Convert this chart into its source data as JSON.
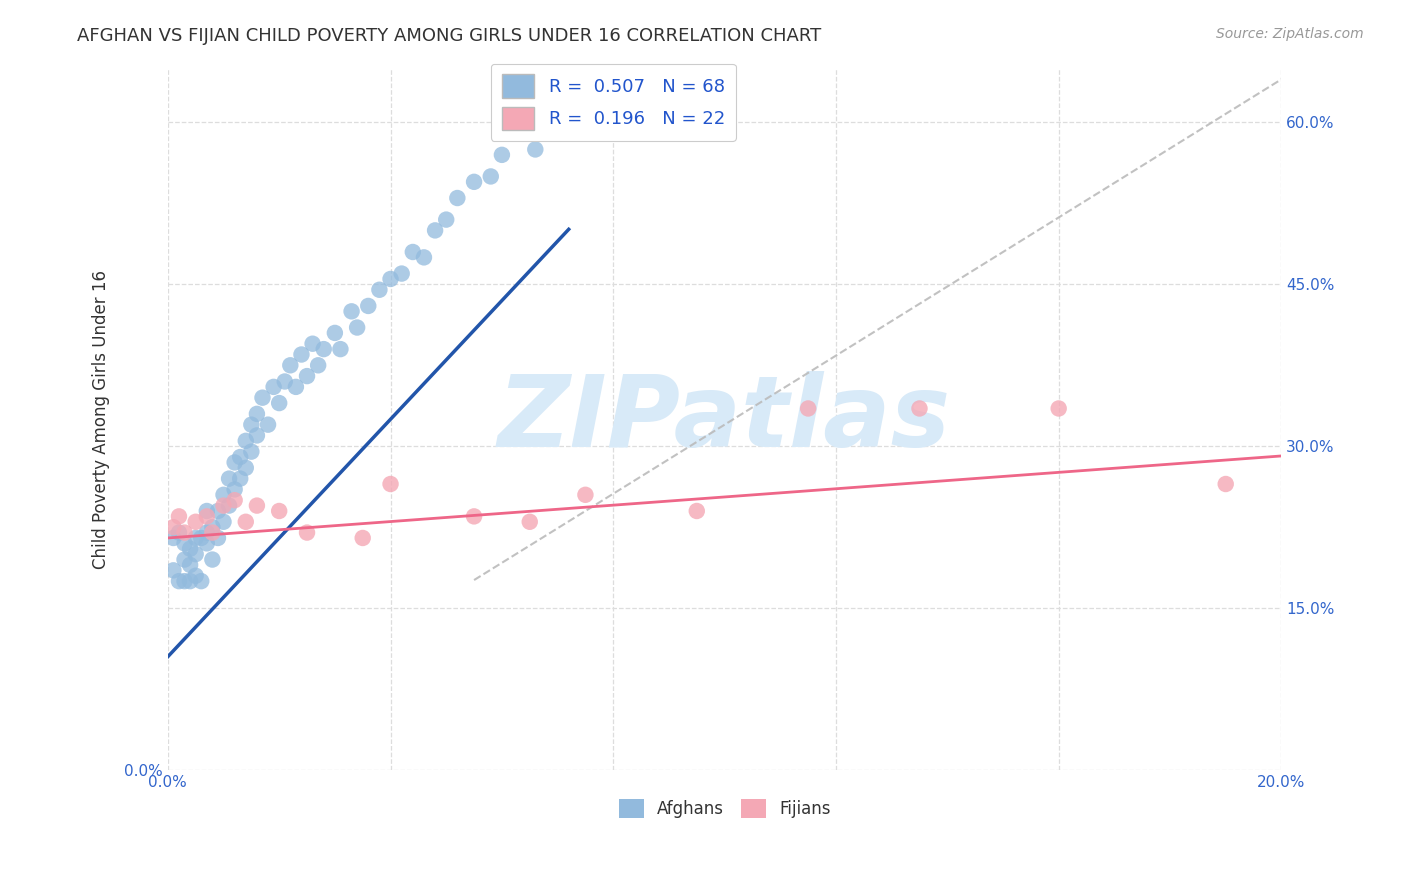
{
  "title": "AFGHAN VS FIJIAN CHILD POVERTY AMONG GIRLS UNDER 16 CORRELATION CHART",
  "source": "Source: ZipAtlas.com",
  "ylabel": "Child Poverty Among Girls Under 16",
  "xlim": [
    0.0,
    0.2
  ],
  "ylim": [
    0.0,
    0.65
  ],
  "blue_color": "#92BADD",
  "pink_color": "#F4A8B5",
  "blue_line_color": "#2255AA",
  "pink_line_color": "#EE6688",
  "diag_color": "#BBBBBB",
  "legend_text_color": "#2255CC",
  "background_color": "#FFFFFF",
  "watermark": "ZIPatlas",
  "watermark_color": "#D8EAF8",
  "legend_blue_label": "R =  0.507   N = 68",
  "legend_pink_label": "R =  0.196   N = 22",
  "blue_slope": 5.5,
  "blue_intercept": 0.105,
  "blue_line_x_end": 0.072,
  "pink_slope": 0.38,
  "pink_intercept": 0.215,
  "pink_line_x_end": 0.2,
  "diag_slope": 3.2,
  "diag_intercept": 0.0,
  "blue_x": [
    0.001,
    0.001,
    0.002,
    0.002,
    0.003,
    0.003,
    0.003,
    0.004,
    0.004,
    0.004,
    0.005,
    0.005,
    0.005,
    0.006,
    0.006,
    0.007,
    0.007,
    0.007,
    0.008,
    0.008,
    0.009,
    0.009,
    0.01,
    0.01,
    0.011,
    0.011,
    0.012,
    0.012,
    0.013,
    0.013,
    0.014,
    0.014,
    0.015,
    0.015,
    0.016,
    0.016,
    0.017,
    0.018,
    0.019,
    0.02,
    0.021,
    0.022,
    0.023,
    0.024,
    0.025,
    0.026,
    0.027,
    0.028,
    0.03,
    0.031,
    0.033,
    0.034,
    0.036,
    0.038,
    0.04,
    0.042,
    0.044,
    0.046,
    0.048,
    0.05,
    0.052,
    0.055,
    0.058,
    0.06,
    0.063,
    0.066,
    0.07,
    0.073
  ],
  "blue_y": [
    0.215,
    0.185,
    0.22,
    0.175,
    0.21,
    0.195,
    0.175,
    0.205,
    0.19,
    0.175,
    0.215,
    0.2,
    0.18,
    0.215,
    0.175,
    0.22,
    0.24,
    0.21,
    0.225,
    0.195,
    0.24,
    0.215,
    0.255,
    0.23,
    0.27,
    0.245,
    0.285,
    0.26,
    0.29,
    0.27,
    0.305,
    0.28,
    0.32,
    0.295,
    0.33,
    0.31,
    0.345,
    0.32,
    0.355,
    0.34,
    0.36,
    0.375,
    0.355,
    0.385,
    0.365,
    0.395,
    0.375,
    0.39,
    0.405,
    0.39,
    0.425,
    0.41,
    0.43,
    0.445,
    0.455,
    0.46,
    0.48,
    0.475,
    0.5,
    0.51,
    0.53,
    0.545,
    0.55,
    0.57,
    0.59,
    0.575,
    0.6,
    0.62
  ],
  "pink_x": [
    0.001,
    0.002,
    0.003,
    0.005,
    0.007,
    0.008,
    0.01,
    0.012,
    0.014,
    0.016,
    0.02,
    0.025,
    0.035,
    0.04,
    0.055,
    0.065,
    0.075,
    0.095,
    0.115,
    0.135,
    0.16,
    0.19
  ],
  "pink_y": [
    0.225,
    0.235,
    0.22,
    0.23,
    0.235,
    0.22,
    0.245,
    0.25,
    0.23,
    0.245,
    0.24,
    0.22,
    0.215,
    0.265,
    0.235,
    0.23,
    0.255,
    0.24,
    0.335,
    0.335,
    0.335,
    0.265
  ]
}
